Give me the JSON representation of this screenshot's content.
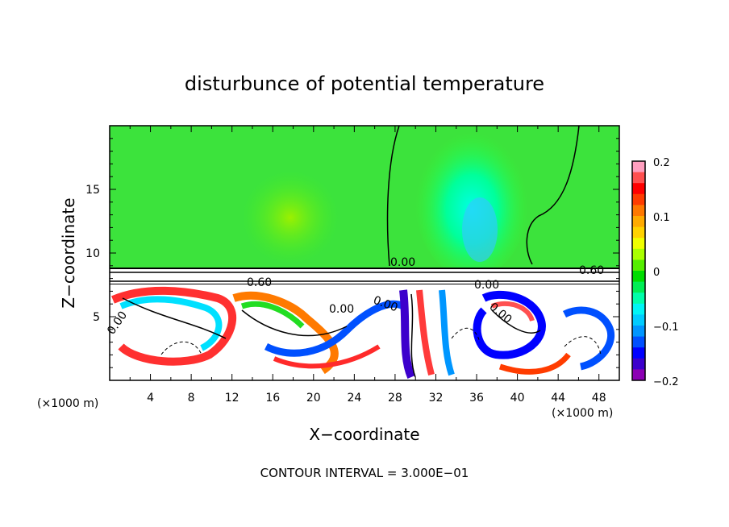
{
  "chart_data": {
    "type": "heatmap",
    "title": "disturbunce of potential temperature",
    "xlabel": "X−coordinate",
    "ylabel": "Z−coordinate",
    "x_unit_left": "(×1000 m)",
    "x_unit_right": "(×1000 m)",
    "xlim": [
      0,
      50
    ],
    "ylim": [
      0,
      20
    ],
    "x_ticks": [
      4,
      8,
      12,
      16,
      20,
      24,
      28,
      32,
      36,
      40,
      44,
      48
    ],
    "y_ticks": [
      5,
      10,
      15
    ],
    "colorbar": {
      "range": [
        -0.2,
        0.2
      ],
      "tick_labels": [
        "0.2",
        "0.1",
        "0",
        "−0.1",
        "−0.2"
      ],
      "colors": [
        "#ff9fbf",
        "#ff5050",
        "#ff0000",
        "#ff3c00",
        "#ff7800",
        "#ffaa00",
        "#ffd200",
        "#f0ff00",
        "#aaff00",
        "#55ee00",
        "#00dd00",
        "#00ee55",
        "#00ffaa",
        "#00f5f5",
        "#00ccff",
        "#0096ff",
        "#0050ff",
        "#0000ff",
        "#3c00cc",
        "#8c00b4"
      ]
    },
    "contour_labels": [
      "0.00",
      "0.60",
      "0.60",
      "0.00",
      "0.00",
      "0.00",
      "0.00",
      "0.00"
    ],
    "contour_interval_text": "CONTOUR INTERVAL = 3.000E−01"
  }
}
